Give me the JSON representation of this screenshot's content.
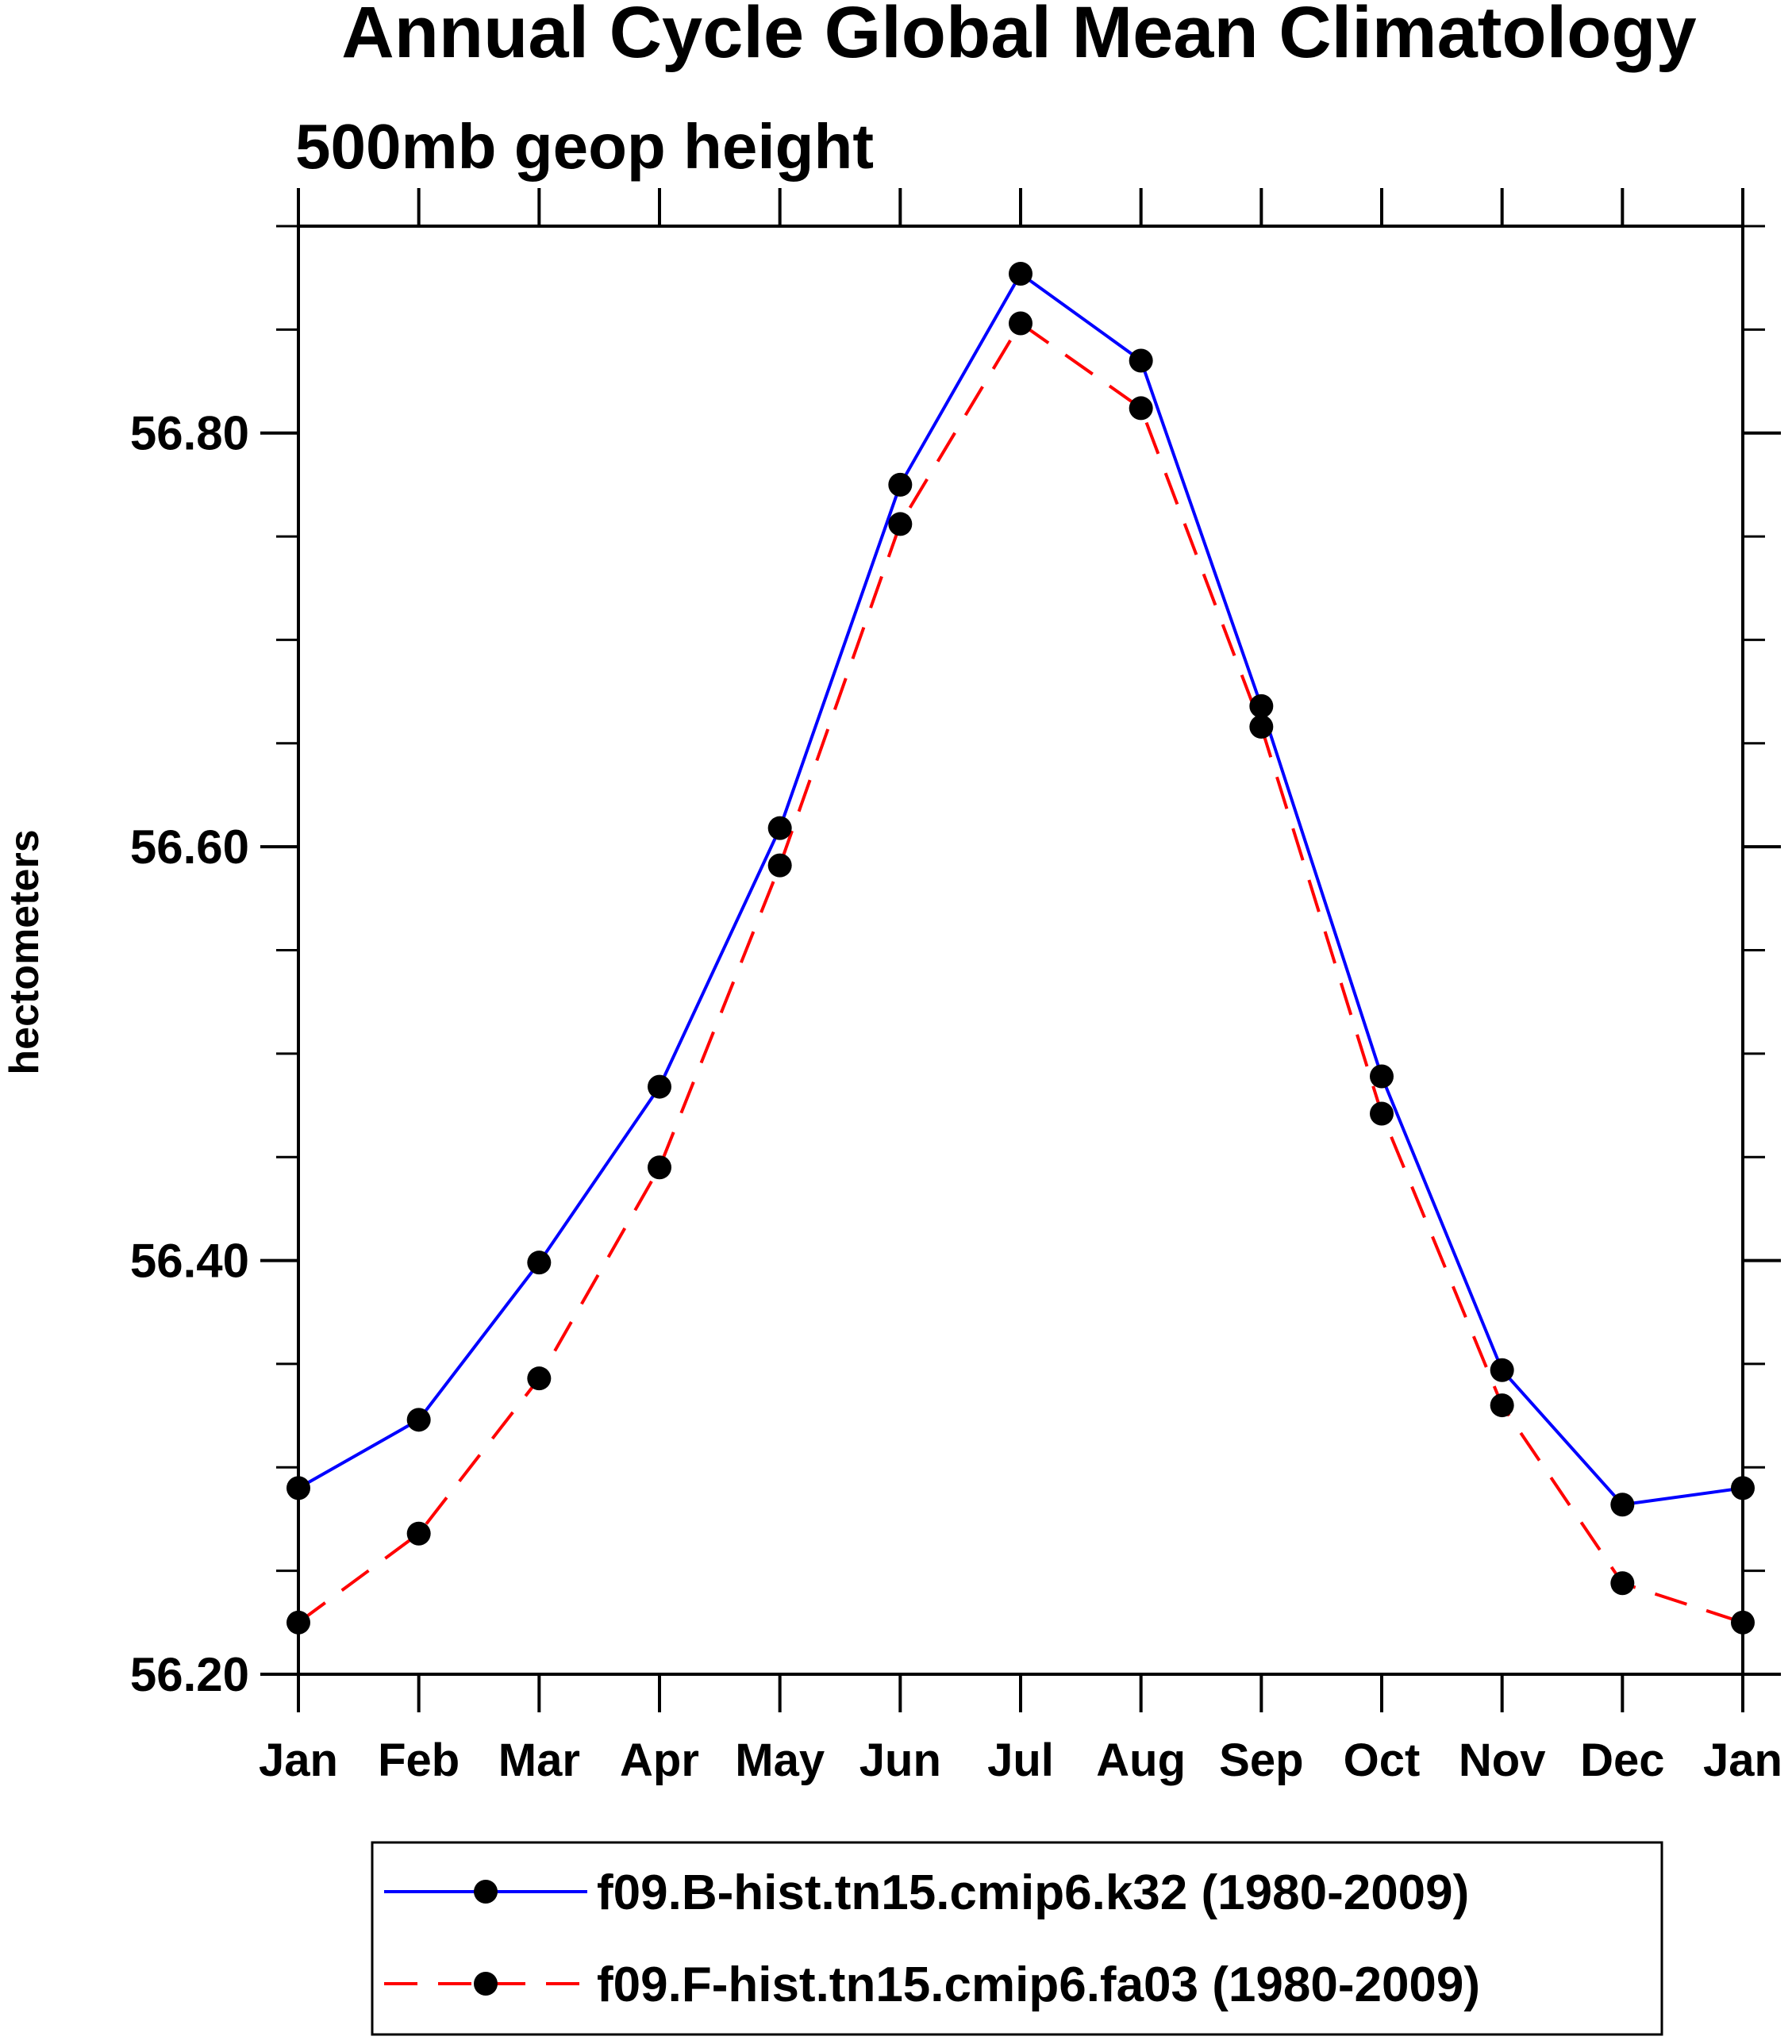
{
  "chart_data": {
    "type": "line",
    "title": "Annual Cycle Global Mean Climatology",
    "subtitle": "500mb geop height",
    "xlabel": "",
    "ylabel": "hectometers",
    "categories": [
      "Jan",
      "Feb",
      "Mar",
      "Apr",
      "May",
      "Jun",
      "Jul",
      "Aug",
      "Sep",
      "Oct",
      "Nov",
      "Dec",
      "Jan"
    ],
    "ylim": [
      56.2,
      56.9
    ],
    "yticks": [
      56.2,
      56.4,
      56.6,
      56.8
    ],
    "ytick_labels": [
      "56.20",
      "56.40",
      "56.60",
      "56.80"
    ],
    "y_minor_step": 0.05,
    "grid": false,
    "legend_position": "bottom-center",
    "series": [
      {
        "name": "f09.B-hist.tn15.cmip6.k32 (1980-2009)",
        "color": "#0000ff",
        "dash": "solid",
        "marker": "filled-circle",
        "values": [
          56.29,
          56.323,
          56.399,
          56.484,
          56.609,
          56.775,
          56.877,
          56.835,
          56.668,
          56.489,
          56.347,
          56.282,
          56.29
        ]
      },
      {
        "name": "f09.F-hist.tn15.cmip6.fa03 (1980-2009)",
        "color": "#ff0000",
        "dash": "dashed",
        "marker": "filled-circle",
        "values": [
          56.225,
          56.268,
          56.343,
          56.445,
          56.591,
          56.756,
          56.853,
          56.812,
          56.658,
          56.471,
          56.33,
          56.244,
          56.225
        ]
      }
    ]
  }
}
